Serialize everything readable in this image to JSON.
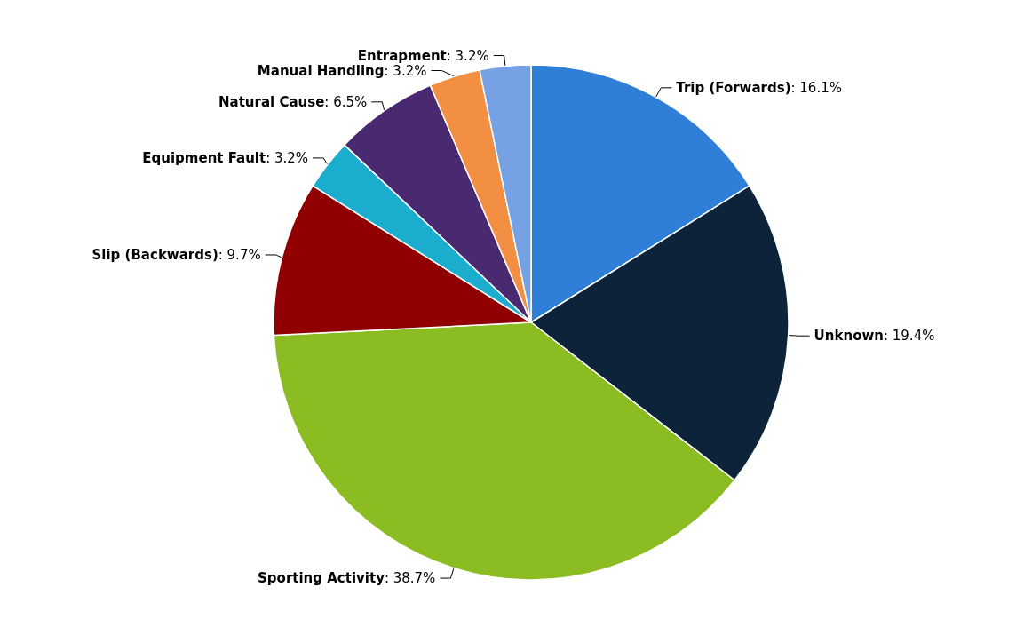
{
  "chart_data": {
    "type": "pie",
    "categories": [
      "Trip (Forwards)",
      "Unknown",
      "Sporting Activity",
      "Slip (Backwards)",
      "Equipment Fault",
      "Natural Cause",
      "Manual Handling",
      "Entrapment"
    ],
    "values": [
      16.1,
      19.4,
      38.7,
      9.7,
      3.2,
      6.5,
      3.2,
      3.2
    ],
    "value_labels": [
      ": 16.1%",
      ": 19.4%",
      ": 38.7%",
      ": 9.7%",
      ": 3.2%",
      ": 6.5%",
      ": 3.2%",
      ": 3.2%"
    ],
    "colors": [
      "#2f7ed8",
      "#0d233a",
      "#8bbc21",
      "#910000",
      "#1aadce",
      "#492970",
      "#f28f43",
      "#77a1e5"
    ],
    "legend": false
  }
}
